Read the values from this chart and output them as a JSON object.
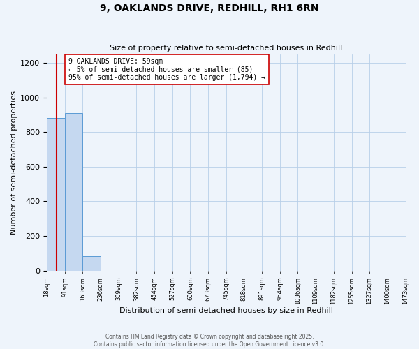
{
  "title": "9, OAKLANDS DRIVE, REDHILL, RH1 6RN",
  "subtitle": "Size of property relative to semi-detached houses in Redhill",
  "xlabel": "Distribution of semi-detached houses by size in Redhill",
  "ylabel": "Number of semi-detached properties",
  "bar_edges": [
    18,
    91,
    163,
    236,
    309,
    382,
    454,
    527,
    600,
    673,
    745,
    818,
    891,
    964,
    1036,
    1109,
    1182,
    1255,
    1327,
    1400,
    1473
  ],
  "bar_heights": [
    880,
    910,
    85,
    0,
    0,
    0,
    0,
    0,
    0,
    0,
    0,
    0,
    0,
    0,
    0,
    0,
    0,
    0,
    0,
    0
  ],
  "bar_color": "#c5d8f0",
  "bar_edgecolor": "#5b9bd5",
  "grid_color": "#b8cfe8",
  "bg_color": "#eef4fb",
  "property_line_x": 59,
  "property_line_color": "#cc0000",
  "annotation_text": "9 OAKLANDS DRIVE: 59sqm\n← 5% of semi-detached houses are smaller (85)\n95% of semi-detached houses are larger (1,794) →",
  "annotation_box_facecolor": "#ffffff",
  "annotation_box_edgecolor": "#cc0000",
  "ylim": [
    0,
    1250
  ],
  "yticks": [
    0,
    200,
    400,
    600,
    800,
    1000,
    1200
  ],
  "footer_line1": "Contains HM Land Registry data © Crown copyright and database right 2025.",
  "footer_line2": "Contains public sector information licensed under the Open Government Licence v3.0."
}
